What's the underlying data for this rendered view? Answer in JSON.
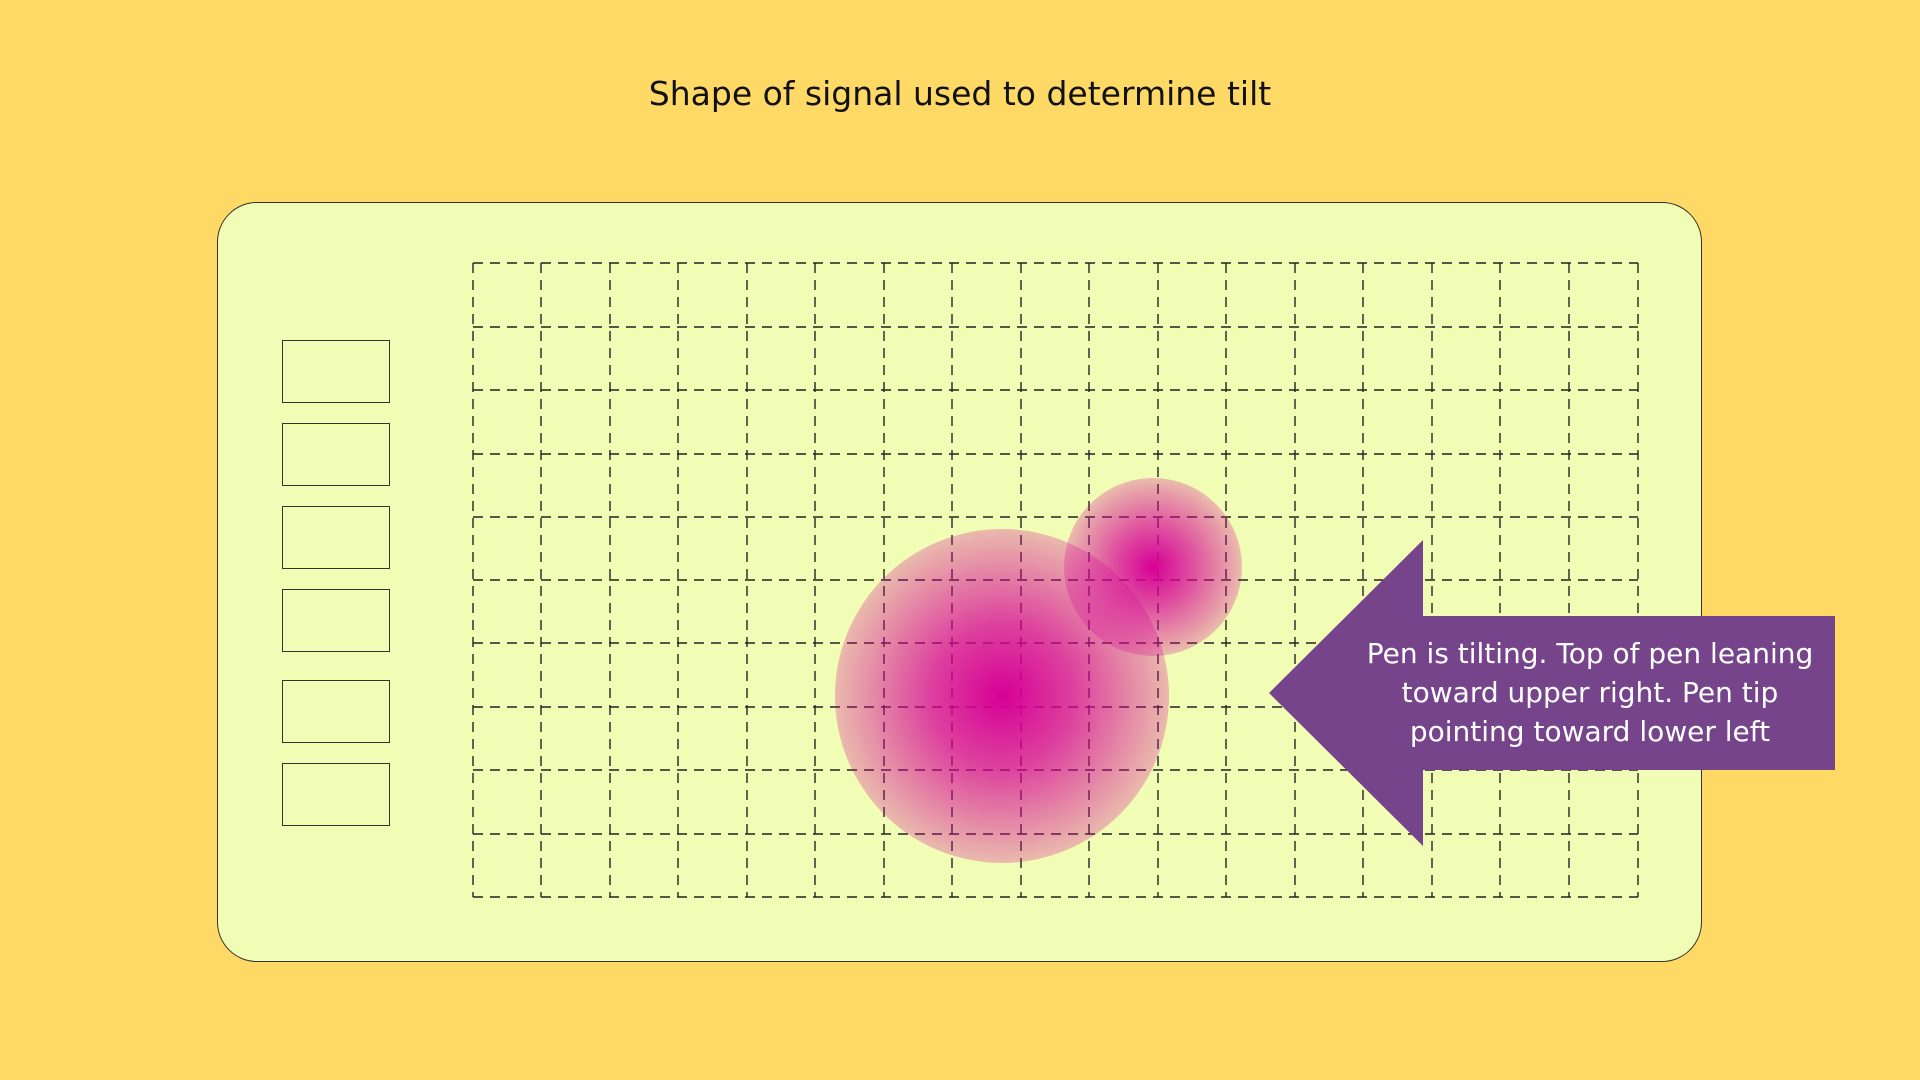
{
  "title": "Shape of signal used to determine tilt",
  "callout": {
    "text": "Pen is tilting. Top of pen leaning toward upper right. Pen tip pointing toward lower left"
  },
  "colors": {
    "background": "#FFD966",
    "tablet_surface": "#F1FDB4",
    "signal": "#D60096",
    "callout_arrow": "#76448A"
  },
  "express_keys": [
    {
      "id": "express-key-1"
    },
    {
      "id": "express-key-2"
    },
    {
      "id": "express-key-3"
    },
    {
      "id": "express-key-4"
    },
    {
      "id": "express-key-5"
    },
    {
      "id": "express-key-6"
    }
  ]
}
